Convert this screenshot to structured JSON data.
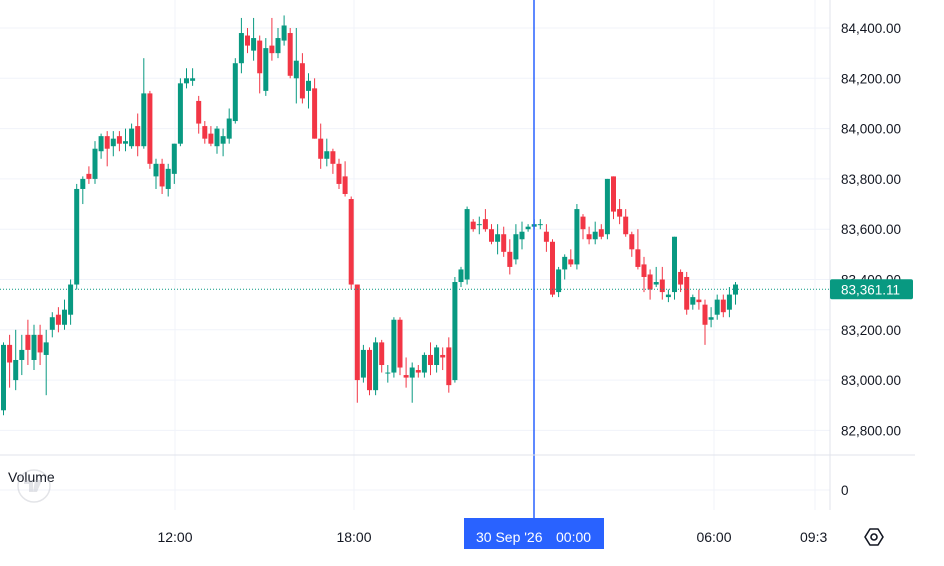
{
  "chart_data": {
    "type": "candlestick",
    "price_axis": {
      "labels": [
        "84,400.00",
        "84,200.00",
        "84,000.00",
        "83,800.00",
        "83,600.00",
        "83,400.00",
        "83,200.00",
        "83,000.00",
        "82,800.00"
      ],
      "values": [
        84400,
        84200,
        84000,
        83800,
        83600,
        83400,
        83200,
        83000,
        82800
      ]
    },
    "time_axis": {
      "labels": [
        "12:00",
        "18:00",
        "06:00",
        "09:3"
      ]
    },
    "crosshair_label": {
      "date": "30 Sep '26",
      "time": "00:00"
    },
    "last_price": {
      "value": 83361.11,
      "label": "83,361.11"
    },
    "volume": {
      "label": "Volume",
      "axis_label": "0"
    },
    "colors": {
      "up": "#089981",
      "down": "#f23645",
      "crosshair": "#2962ff",
      "last_price": "#089981",
      "grid": "#f0f3fa"
    },
    "grid": true,
    "candles": [
      [
        82880,
        83140,
        82880,
        83150,
        82860
      ],
      [
        83140,
        83070,
        82990,
        83180,
        82970
      ],
      [
        83000,
        83080,
        82980,
        83200,
        82960
      ],
      [
        83080,
        83120,
        83040,
        83180,
        83020
      ],
      [
        83180,
        83120,
        83080,
        83240,
        83060
      ],
      [
        83080,
        83180,
        83080,
        83220,
        83040
      ],
      [
        83180,
        83110,
        83080,
        83220,
        83060
      ],
      [
        83100,
        83150,
        83080,
        83200,
        82940
      ],
      [
        83200,
        83250,
        83180,
        83270,
        83170
      ],
      [
        83260,
        83220,
        83200,
        83290,
        83190
      ],
      [
        83220,
        83280,
        83210,
        83320,
        83200
      ],
      [
        83260,
        83380,
        83230,
        83400,
        83220
      ],
      [
        83380,
        83760,
        83360,
        83780,
        83360
      ],
      [
        83760,
        83800,
        83700,
        83810,
        83720
      ],
      [
        83820,
        83800,
        83790,
        83850,
        83780
      ],
      [
        83800,
        83920,
        83790,
        83950,
        83780
      ],
      [
        83910,
        83970,
        83900,
        83980,
        83880
      ],
      [
        83970,
        83920,
        83880,
        83990,
        83850
      ],
      [
        83930,
        83960,
        83890,
        83990,
        83900
      ],
      [
        83970,
        83940,
        83920,
        83990,
        83910
      ],
      [
        83940,
        83950,
        83930,
        84000,
        83910
      ],
      [
        83930,
        84000,
        83930,
        84020,
        83920
      ],
      [
        84010,
        83930,
        83900,
        84060,
        83890
      ],
      [
        83930,
        84140,
        83930,
        84280,
        83920
      ],
      [
        84140,
        83860,
        83860,
        84150,
        83840
      ],
      [
        83810,
        83860,
        83790,
        83880,
        83760
      ],
      [
        83860,
        83770,
        83750,
        83880,
        83740
      ],
      [
        83760,
        83840,
        83740,
        83860,
        83730
      ],
      [
        83820,
        83940,
        83810,
        83940,
        83780
      ],
      [
        83940,
        84180,
        83940,
        84200,
        83930
      ],
      [
        84180,
        84200,
        84160,
        84240,
        84160
      ],
      [
        84190,
        84200,
        84170,
        84240,
        84170
      ],
      [
        84110,
        84020,
        84010,
        84130,
        83980
      ],
      [
        84010,
        83960,
        83950,
        84030,
        83940
      ],
      [
        83980,
        83940,
        83940,
        84010,
        83930
      ],
      [
        83930,
        84000,
        83930,
        84010,
        83900
      ],
      [
        83940,
        83970,
        83930,
        84000,
        83890
      ],
      [
        83960,
        84040,
        83950,
        84080,
        83940
      ],
      [
        84030,
        84260,
        84020,
        84280,
        84020
      ],
      [
        84260,
        84380,
        84230,
        84440,
        84220
      ],
      [
        84370,
        84330,
        84320,
        84400,
        84300
      ],
      [
        84310,
        84360,
        84280,
        84440,
        84270
      ],
      [
        84350,
        84220,
        84150,
        84370,
        84140
      ],
      [
        84150,
        84320,
        84150,
        84360,
        84130
      ],
      [
        84330,
        84300,
        84290,
        84440,
        84270
      ],
      [
        84300,
        84360,
        84290,
        84400,
        84280
      ],
      [
        84350,
        84410,
        84340,
        84450,
        84330
      ],
      [
        84380,
        84210,
        84200,
        84400,
        84200
      ],
      [
        84200,
        84270,
        84190,
        84400,
        84100
      ],
      [
        84260,
        84120,
        84110,
        84300,
        84100
      ],
      [
        84150,
        84190,
        84120,
        84220,
        84080
      ],
      [
        84160,
        83960,
        83960,
        84200,
        83960
      ],
      [
        83960,
        83880,
        83870,
        84020,
        83840
      ],
      [
        83880,
        83910,
        83870,
        83960,
        83850
      ],
      [
        83910,
        83860,
        83850,
        83920,
        83820
      ],
      [
        83860,
        83780,
        83770,
        83880,
        83760
      ],
      [
        83810,
        83740,
        83740,
        83870,
        83730
      ],
      [
        83720,
        83380,
        83380,
        83730,
        83360
      ],
      [
        83380,
        83000,
        82990,
        83380,
        82910
      ],
      [
        83010,
        83120,
        83000,
        83140,
        82990
      ],
      [
        83120,
        82960,
        82950,
        83130,
        82940
      ],
      [
        82960,
        83150,
        82960,
        83170,
        82940
      ],
      [
        83150,
        83060,
        83040,
        83160,
        83030
      ],
      [
        83030,
        83030,
        83000,
        83060,
        82990
      ],
      [
        83030,
        83240,
        83030,
        83250,
        83010
      ],
      [
        83240,
        83050,
        83040,
        83250,
        83020
      ],
      [
        83020,
        83010,
        82990,
        83090,
        82970
      ],
      [
        83010,
        83050,
        82990,
        83070,
        82910
      ],
      [
        83040,
        83030,
        83020,
        83060,
        83010
      ],
      [
        83030,
        83100,
        83020,
        83110,
        83010
      ],
      [
        83100,
        83060,
        83060,
        83150,
        83020
      ],
      [
        83060,
        83130,
        83050,
        83140,
        83030
      ],
      [
        83100,
        83090,
        83070,
        83130,
        83040
      ],
      [
        83130,
        82980,
        82970,
        83170,
        82950
      ],
      [
        83000,
        83390,
        82990,
        83410,
        82990
      ],
      [
        83390,
        83440,
        83380,
        83450,
        83370
      ],
      [
        83400,
        83680,
        83380,
        83690,
        83380
      ],
      [
        83630,
        83600,
        83600,
        83640,
        83590
      ],
      [
        83620,
        83620,
        83590,
        83650,
        83580
      ],
      [
        83640,
        83600,
        83600,
        83680,
        83590
      ],
      [
        83600,
        83550,
        83550,
        83620,
        83540
      ],
      [
        83550,
        83580,
        83540,
        83620,
        83500
      ],
      [
        83580,
        83510,
        83510,
        83610,
        83490
      ],
      [
        83510,
        83450,
        83450,
        83560,
        83420
      ],
      [
        83480,
        83580,
        83470,
        83620,
        83460
      ],
      [
        83560,
        83590,
        83550,
        83630,
        83520
      ],
      [
        83600,
        83610,
        83590,
        83620,
        83590
      ],
      [
        83610,
        83620,
        83600,
        83640,
        83600
      ],
      [
        83620,
        83620,
        83600,
        83640,
        83600
      ],
      [
        83590,
        83550,
        83530,
        83620,
        83510
      ],
      [
        83550,
        83340,
        83340,
        83560,
        83330
      ],
      [
        83350,
        83440,
        83340,
        83450,
        83330
      ],
      [
        83440,
        83490,
        83440,
        83500,
        83400
      ],
      [
        83480,
        83460,
        83450,
        83520,
        83450
      ],
      [
        83460,
        83680,
        83450,
        83700,
        83440
      ],
      [
        83650,
        83600,
        83580,
        83660,
        83560
      ],
      [
        83580,
        83560,
        83550,
        83610,
        83540
      ],
      [
        83560,
        83590,
        83550,
        83630,
        83540
      ],
      [
        83600,
        83570,
        83560,
        83620,
        83560
      ],
      [
        83580,
        83800,
        83570,
        83800,
        83560
      ],
      [
        83810,
        83670,
        83650,
        83810,
        83640
      ],
      [
        83680,
        83650,
        83640,
        83720,
        83620
      ],
      [
        83650,
        83580,
        83580,
        83680,
        83570
      ],
      [
        83580,
        83520,
        83510,
        83590,
        83490
      ],
      [
        83520,
        83450,
        83450,
        83600,
        83440
      ],
      [
        83460,
        83410,
        83400,
        83490,
        83350
      ],
      [
        83420,
        83360,
        83350,
        83440,
        83320
      ],
      [
        83380,
        83390,
        83370,
        83450,
        83370
      ],
      [
        83400,
        83350,
        83340,
        83450,
        83320
      ],
      [
        83330,
        83340,
        83320,
        83360,
        83310
      ],
      [
        83350,
        83570,
        83350,
        83570,
        83320
      ],
      [
        83430,
        83380,
        83360,
        83440,
        83350
      ],
      [
        83410,
        83280,
        83270,
        83430,
        83260
      ],
      [
        83300,
        83330,
        83290,
        83340,
        83280
      ],
      [
        83320,
        83310,
        83300,
        83360,
        83280
      ],
      [
        83300,
        83220,
        83220,
        83320,
        83140
      ],
      [
        83240,
        83250,
        83220,
        83290,
        83210
      ],
      [
        83260,
        83320,
        83240,
        83340,
        83240
      ],
      [
        83320,
        83270,
        83250,
        83340,
        83260
      ],
      [
        83280,
        83340,
        83280,
        83370,
        83250
      ],
      [
        83340,
        83380,
        83300,
        83390,
        83310
      ]
    ]
  }
}
